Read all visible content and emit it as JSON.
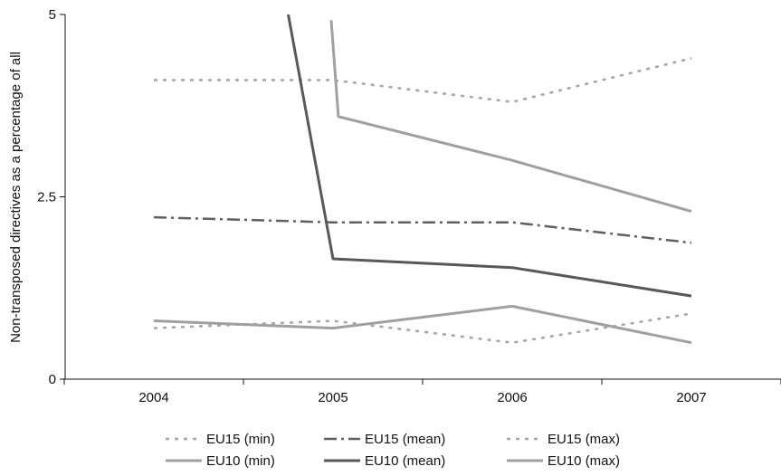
{
  "chart_data": {
    "type": "line",
    "title": "",
    "xlabel": "",
    "ylabel": "Non-transposed directives as a percentage of all",
    "categories": [
      "2004",
      "2005",
      "2006",
      "2007"
    ],
    "ylim": [
      0,
      5
    ],
    "yticks": [
      "0",
      "2.5",
      "5"
    ],
    "grid": false,
    "legend_position": "bottom",
    "series": [
      {
        "name": "EU15 (min)",
        "x": [
          2004,
          2005,
          2006,
          2007
        ],
        "values": [
          0.7,
          0.8,
          0.5,
          0.9
        ],
        "color": "#a6a6a6",
        "style": "dotted"
      },
      {
        "name": "EU15 (mean)",
        "x": [
          2004,
          2005,
          2006,
          2007
        ],
        "values": [
          2.22,
          2.15,
          2.15,
          1.87
        ],
        "color": "#606060",
        "style": "dashdot"
      },
      {
        "name": "EU15 (max)",
        "x": [
          2004,
          2005,
          2006,
          2007
        ],
        "values": [
          4.1,
          4.1,
          3.8,
          4.4
        ],
        "color": "#a6a6a6",
        "style": "dotted"
      },
      {
        "name": "EU10 (min)",
        "x": [
          2004,
          2005,
          2006,
          2007
        ],
        "values": [
          0.8,
          0.7,
          1.0,
          0.5
        ],
        "color": "#a0a0a0",
        "style": "solid"
      },
      {
        "name": "EU10 (mean)",
        "x": [
          2004.75,
          2005,
          2006,
          2007
        ],
        "values": [
          5.0,
          1.65,
          1.53,
          1.14
        ],
        "color": "#585858",
        "style": "solid"
      },
      {
        "name": "EU10 (max)",
        "x": [
          2004.99,
          2005.03,
          2006,
          2007
        ],
        "values": [
          4.92,
          3.6,
          3.0,
          2.3
        ],
        "color": "#a0a0a0",
        "style": "solid"
      }
    ]
  }
}
